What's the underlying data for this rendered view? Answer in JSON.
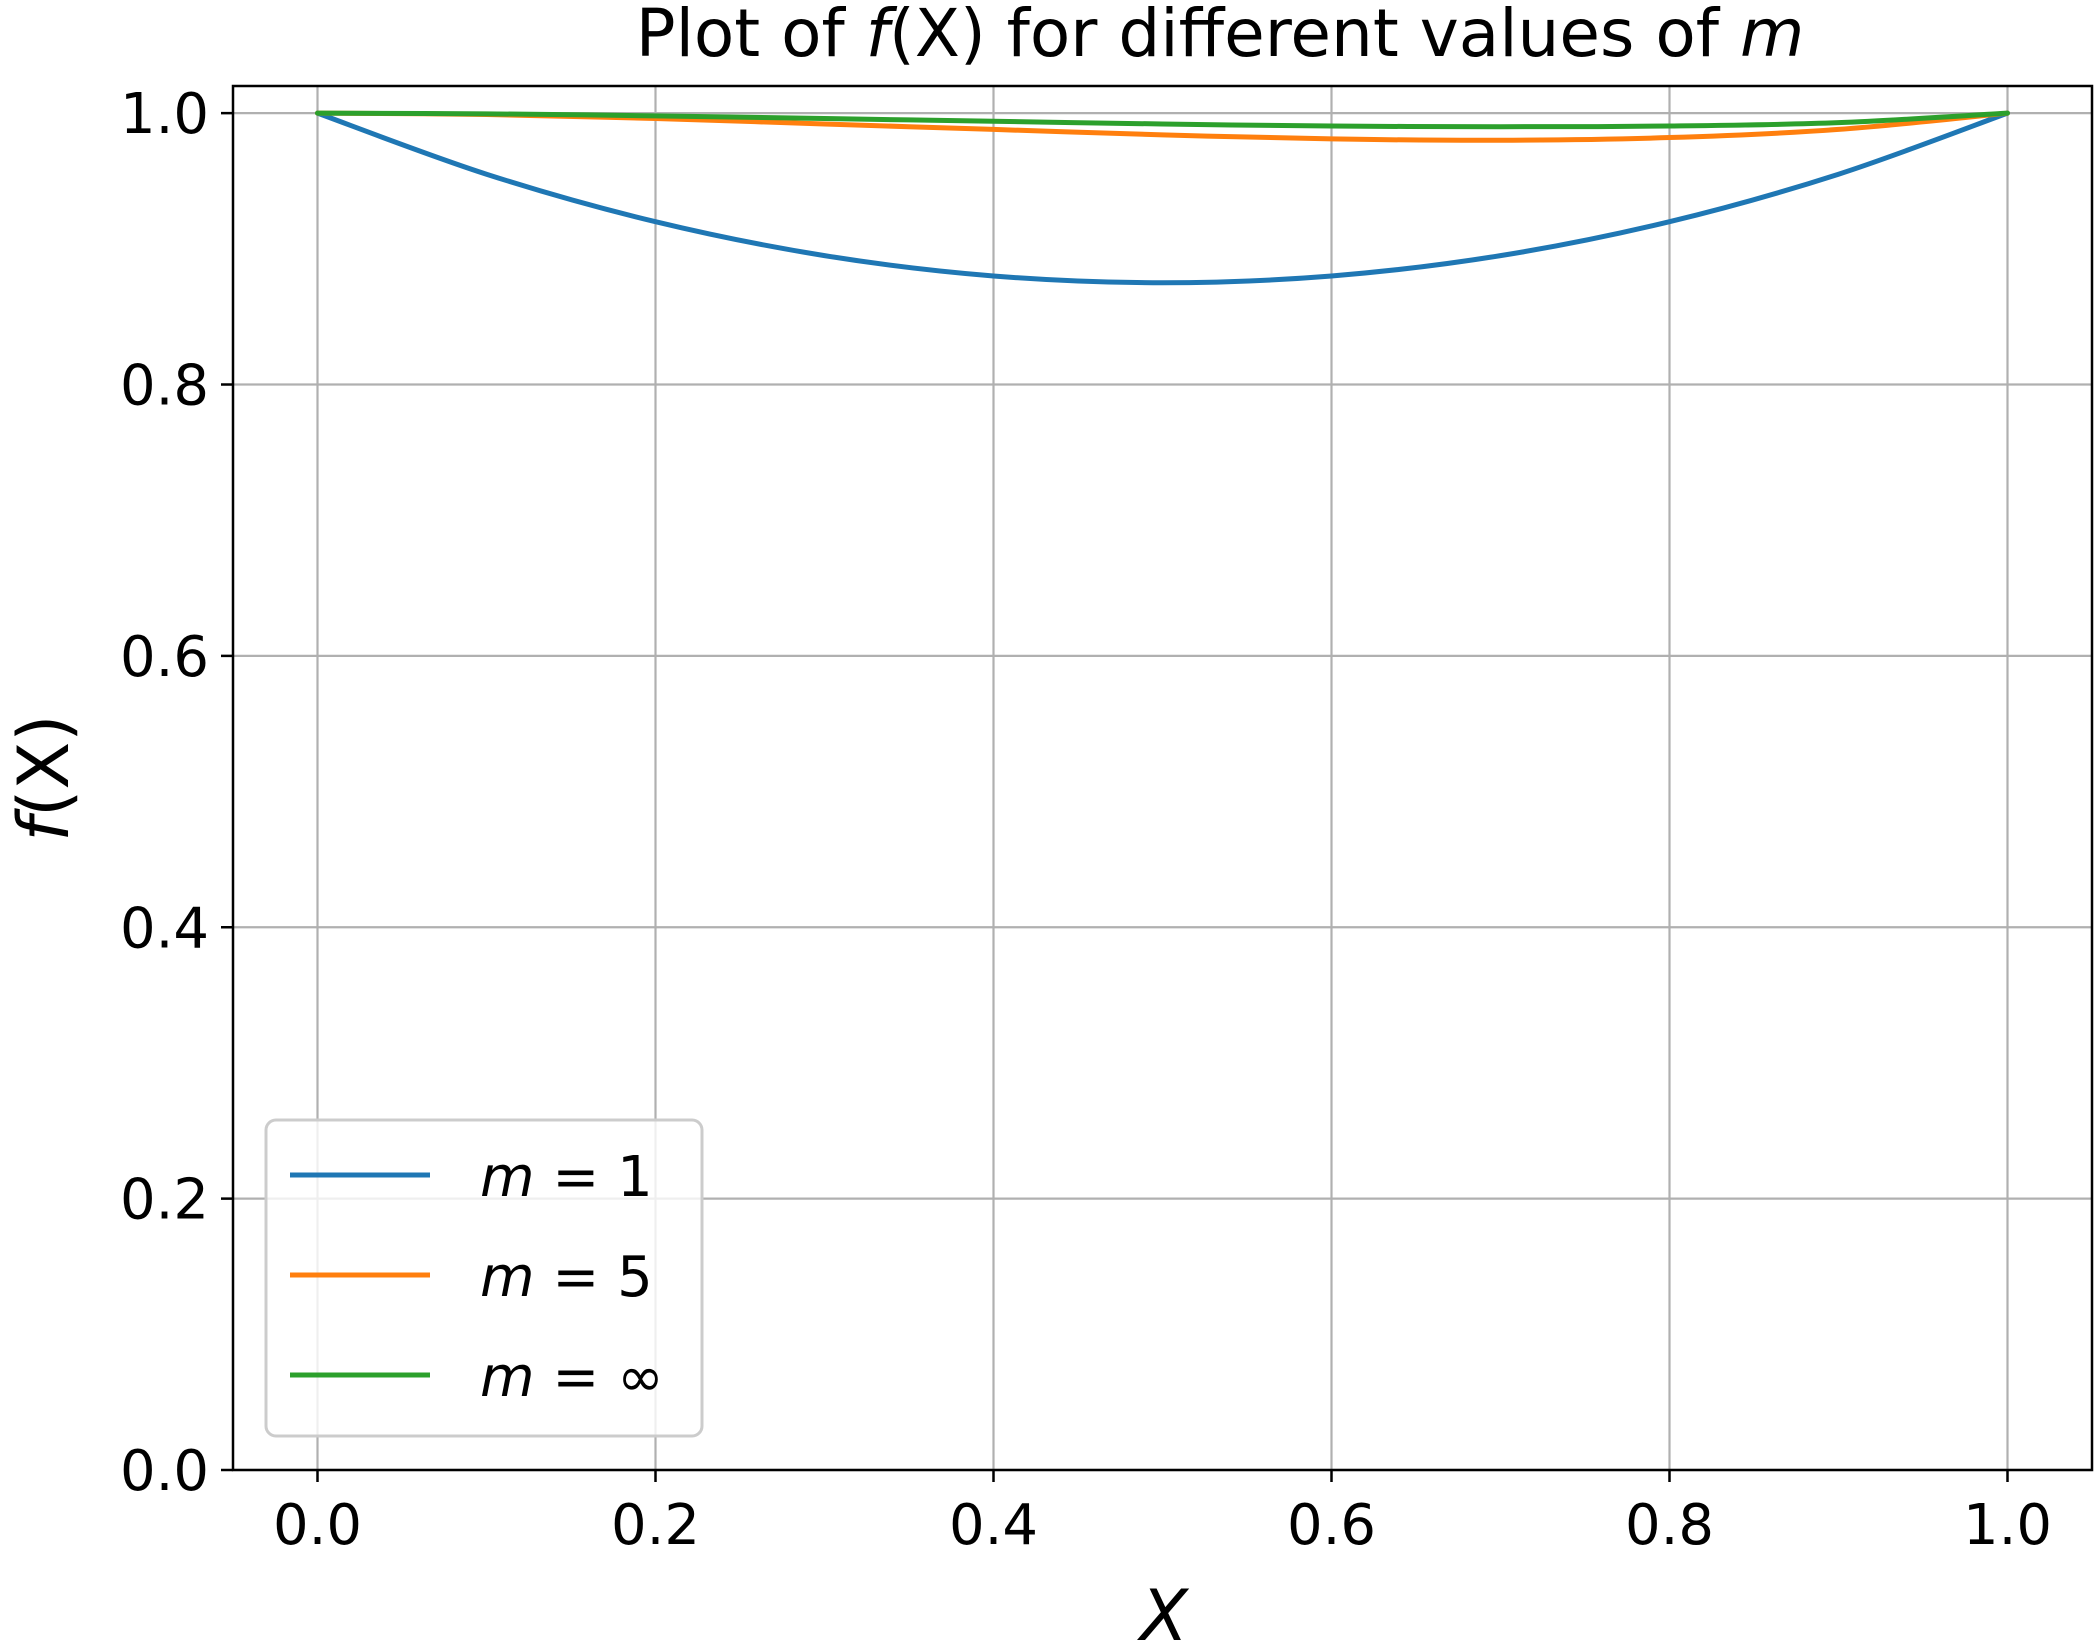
{
  "chart_data": {
    "type": "line",
    "title": {
      "prefix": "Plot of ",
      "fn": "f",
      "arg": "(X)",
      "middle": " for different values of ",
      "var": "m"
    },
    "xlabel": "X",
    "ylabel": {
      "fn": "f",
      "arg": "(X)"
    },
    "xlim": [
      -0.05,
      1.05
    ],
    "ylim": [
      0.0,
      1.02
    ],
    "xticks": [
      0.0,
      0.2,
      0.4,
      0.6,
      0.8,
      1.0
    ],
    "xtick_labels": [
      "0.0",
      "0.2",
      "0.4",
      "0.6",
      "0.8",
      "1.0"
    ],
    "yticks": [
      0.0,
      0.2,
      0.4,
      0.6,
      0.8,
      1.0
    ],
    "ytick_labels": [
      "0.0",
      "0.2",
      "0.4",
      "0.6",
      "0.8",
      "1.0"
    ],
    "grid": true,
    "legend_position": "lower-left",
    "x": [
      0.0,
      0.1,
      0.2,
      0.3,
      0.4,
      0.5,
      0.6,
      0.7,
      0.8,
      0.9,
      1.0
    ],
    "series": [
      {
        "name": "m = 1",
        "var": "m",
        "op": " = ",
        "val": "1",
        "color": "#1f77b4",
        "values": [
          1.0,
          0.955,
          0.92,
          0.895,
          0.88,
          0.875,
          0.88,
          0.895,
          0.92,
          0.955,
          1.0
        ]
      },
      {
        "name": "m = 5",
        "var": "m",
        "op": " = ",
        "val": "5",
        "color": "#ff7f0e",
        "values": [
          1.0,
          0.999,
          0.996,
          0.992,
          0.988,
          0.984,
          0.981,
          0.98,
          0.982,
          0.988,
          1.0
        ]
      },
      {
        "name": "m = ∞",
        "var": "m",
        "op": " = ",
        "val": "∞",
        "color": "#2ca02c",
        "values": [
          1.0,
          0.9995,
          0.998,
          0.996,
          0.994,
          0.992,
          0.9905,
          0.99,
          0.9905,
          0.993,
          1.0
        ]
      }
    ]
  }
}
